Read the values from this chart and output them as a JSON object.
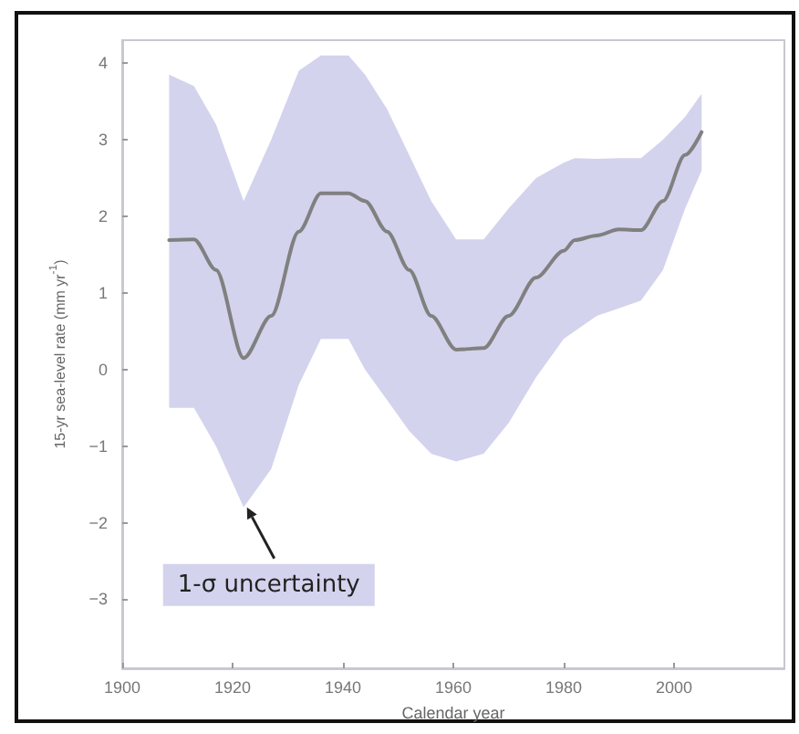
{
  "chart_data": {
    "type": "line",
    "xlabel": "Calendar year",
    "ylabel": "15-yr sea-level rate (mm yr$^{-1}$)",
    "x": [
      1908.5,
      1913,
      1917,
      1922,
      1927,
      1932,
      1936,
      1941,
      1944,
      1948,
      1952,
      1956,
      1960.5,
      1965.5,
      1970,
      1975,
      1980,
      1982,
      1986,
      1990,
      1994,
      1998,
      2002,
      2005
    ],
    "series": [
      {
        "color": "#808080",
        "values": [
          1.69,
          1.7,
          1.3,
          0.15,
          0.7,
          1.8,
          2.3,
          2.3,
          2.2,
          1.8,
          1.3,
          0.7,
          0.26,
          0.28,
          0.7,
          1.2,
          1.55,
          1.69,
          1.75,
          1.83,
          1.82,
          2.2,
          2.8,
          3.1
        ],
        "upper": [
          3.85,
          3.7,
          3.2,
          2.2,
          3.0,
          3.9,
          4.1,
          4.1,
          3.85,
          3.4,
          2.8,
          2.2,
          1.7,
          1.7,
          2.1,
          2.5,
          2.7,
          2.76,
          2.75,
          2.76,
          2.76,
          3.0,
          3.3,
          3.6
        ],
        "lower": [
          -0.5,
          -0.5,
          -1.0,
          -1.8,
          -1.3,
          -0.2,
          0.4,
          0.4,
          0.0,
          -0.4,
          -0.8,
          -1.1,
          -1.2,
          -1.1,
          -0.7,
          -0.1,
          0.4,
          0.5,
          0.7,
          0.8,
          0.9,
          1.3,
          2.1,
          2.6
        ]
      }
    ],
    "annotations": [
      {
        "text": "1-σ uncertainty",
        "x": 1922.6,
        "y": -1.8
      }
    ],
    "xlim": [
      1900,
      2020
    ],
    "ylim": [
      -3.9,
      4.3
    ],
    "xticks": [
      1900,
      1920,
      1940,
      1960,
      1980,
      2000
    ],
    "yticks": [
      -3,
      -2,
      -1,
      0,
      1,
      2,
      3,
      4
    ],
    "grid": false,
    "marker": "none",
    "line_style": "solid"
  }
}
